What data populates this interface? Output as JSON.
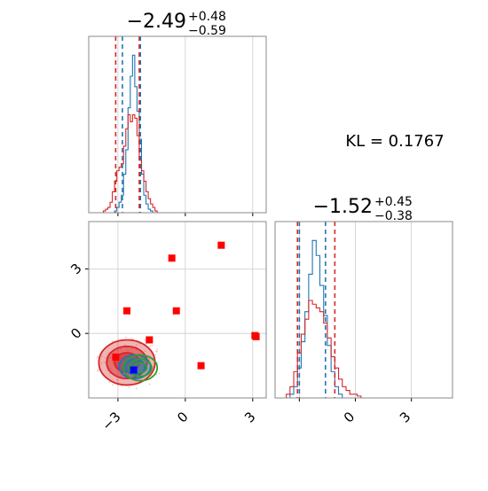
{
  "kl_label": "KL = 0.1767",
  "chart_data": [
    {
      "type": "histogram",
      "panel": "marginal-param-1",
      "title": {
        "median": "−2.49",
        "plus": "+0.48",
        "minus": "−0.59"
      },
      "xlim": [
        -4.3,
        3.6
      ],
      "ticks": [
        -3,
        0,
        3
      ],
      "tick_labels_shown": false,
      "grid": true,
      "series": [
        {
          "name": "",
          "color": "#1f77b4",
          "lines": [
            -2.8,
            -2.0
          ],
          "bins": [
            -3.15,
            -3.05,
            -2.95,
            -2.85,
            -2.75,
            -2.65,
            -2.55,
            -2.45,
            -2.35,
            -2.25,
            -2.15,
            -2.05,
            -1.95,
            -1.85,
            -1.75,
            -1.65,
            -1.55,
            -1.45
          ],
          "counts": [
            0.01,
            0.03,
            0.06,
            0.1,
            0.22,
            0.36,
            0.6,
            0.78,
            0.9,
            0.72,
            0.58,
            0.42,
            0.22,
            0.1,
            0.05,
            0.02,
            0.01
          ]
        },
        {
          "name": "",
          "color": "#d62728",
          "lines": [
            -3.1,
            -2.05
          ],
          "bins": [
            -3.65,
            -3.55,
            -3.45,
            -3.35,
            -3.25,
            -3.15,
            -3.05,
            -2.95,
            -2.85,
            -2.75,
            -2.65,
            -2.55,
            -2.45,
            -2.35,
            -2.25,
            -2.15,
            -2.05,
            -1.95,
            -1.85,
            -1.75,
            -1.65,
            -1.55,
            -1.45,
            -1.35,
            -1.25
          ],
          "counts": [
            0.01,
            0.02,
            0.03,
            0.06,
            0.12,
            0.18,
            0.24,
            0.26,
            0.28,
            0.38,
            0.48,
            0.56,
            0.52,
            0.56,
            0.54,
            0.44,
            0.3,
            0.24,
            0.18,
            0.12,
            0.08,
            0.05,
            0.03,
            0.01
          ]
        }
      ]
    },
    {
      "type": "histogram",
      "panel": "marginal-param-2",
      "title": {
        "median": "−1.52",
        "plus": "+0.45",
        "minus": "−0.38"
      },
      "xlim": [
        -4.3,
        5.2
      ],
      "ticks": [
        -3,
        0,
        3
      ],
      "tick_labels": [
        "",
        "0",
        "3"
      ],
      "grid": true,
      "series": [
        {
          "name": "",
          "color": "#1f77b4",
          "lines": [
            -3.0,
            -1.6
          ],
          "bins": [
            -3.5,
            -3.3,
            -3.1,
            -2.9,
            -2.7,
            -2.5,
            -2.3,
            -2.1,
            -1.9,
            -1.7,
            -1.5,
            -1.3,
            -1.1,
            -0.9,
            -0.7
          ],
          "counts": [
            0.02,
            0.06,
            0.16,
            0.3,
            0.46,
            0.66,
            0.84,
            0.76,
            0.6,
            0.44,
            0.28,
            0.14,
            0.06,
            0.02
          ]
        },
        {
          "name": "",
          "color": "#d62728",
          "lines": [
            -3.1,
            -1.1
          ],
          "bins": [
            -3.7,
            -3.5,
            -3.3,
            -3.1,
            -2.9,
            -2.7,
            -2.5,
            -2.3,
            -2.1,
            -1.9,
            -1.7,
            -1.5,
            -1.3,
            -1.1,
            -0.9,
            -0.7,
            -0.5,
            -0.3,
            -0.1,
            0.1,
            0.3
          ],
          "counts": [
            0.02,
            0.06,
            0.14,
            0.24,
            0.34,
            0.42,
            0.52,
            0.5,
            0.48,
            0.46,
            0.4,
            0.32,
            0.22,
            0.16,
            0.1,
            0.06,
            0.04,
            0.02,
            0.02,
            0.01
          ]
        }
      ]
    },
    {
      "type": "scatter",
      "panel": "joint-param-1-vs-param-2",
      "xlim": [
        -4.3,
        3.6
      ],
      "ylim": [
        -3.0,
        5.2
      ],
      "xticks": [
        -3,
        0,
        3
      ],
      "yticks": [
        0,
        3
      ],
      "xtick_labels": [
        "−3",
        "0",
        "3"
      ],
      "ytick_labels": [
        "0",
        "3"
      ],
      "grid": true,
      "red_points": [
        [
          -3.1,
          -1.1
        ],
        [
          -2.6,
          1.05
        ],
        [
          -1.6,
          -0.3
        ],
        [
          -0.6,
          3.5
        ],
        [
          -0.4,
          1.05
        ],
        [
          0.7,
          -1.5
        ],
        [
          1.6,
          4.1
        ],
        [
          3.1,
          -0.1
        ],
        [
          3.15,
          -0.15
        ]
      ],
      "blue_point": [
        -2.3,
        -1.7
      ],
      "contours": [
        {
          "name": "",
          "color": "#d62728",
          "filled": true,
          "center": [
            -2.6,
            -1.35
          ],
          "radii": [
            [
              1.25,
              1.05
            ],
            [
              0.9,
              0.75
            ],
            [
              0.55,
              0.45
            ]
          ]
        },
        {
          "name": "",
          "color": "#1f77b4",
          "filled": true,
          "center": [
            -2.25,
            -1.55
          ],
          "radii": [
            [
              0.7,
              0.55
            ],
            [
              0.45,
              0.35
            ]
          ]
        },
        {
          "name": "",
          "color": "#2ca02c",
          "filled": false,
          "center": [
            -2.0,
            -1.6
          ],
          "radii": [
            [
              0.75,
              0.6
            ],
            [
              0.5,
              0.4
            ],
            [
              0.28,
              0.22
            ]
          ]
        }
      ]
    }
  ]
}
